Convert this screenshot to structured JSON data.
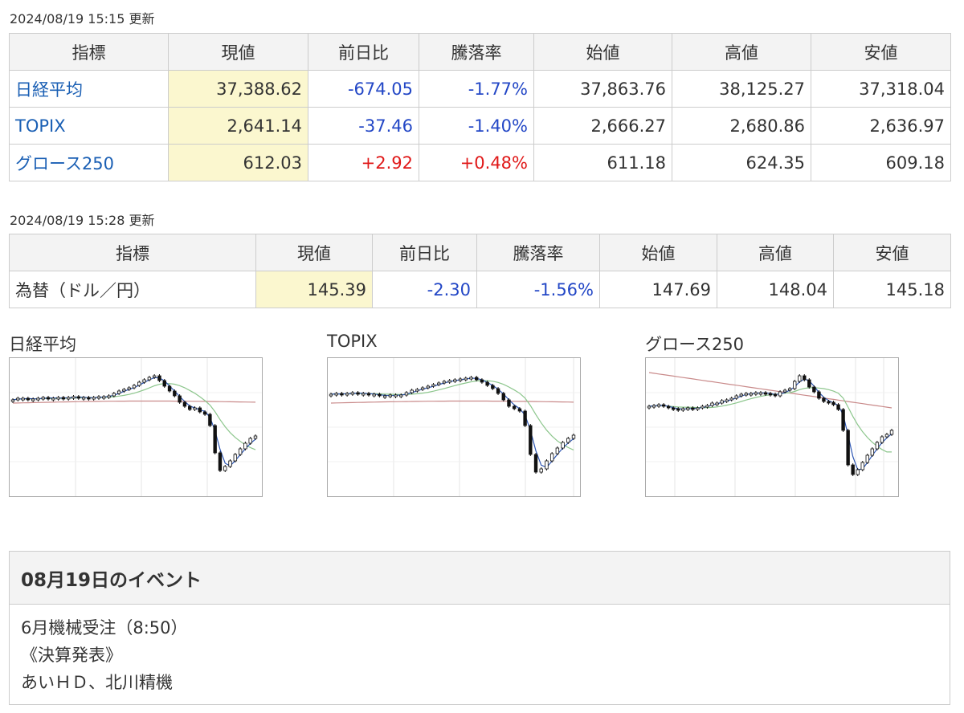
{
  "stocks": {
    "updated": "2024/08/19 15:15 更新",
    "headers": [
      "指標",
      "現値",
      "前日比",
      "騰落率",
      "始値",
      "高値",
      "安値"
    ],
    "rows": [
      {
        "name": "日経平均",
        "current": "37,388.62",
        "change": "-674.05",
        "rate": "-1.77%",
        "open": "37,863.76",
        "high": "38,125.27",
        "low": "37,318.04",
        "dir": "neg"
      },
      {
        "name": "TOPIX",
        "current": "2,641.14",
        "change": "-37.46",
        "rate": "-1.40%",
        "open": "2,666.27",
        "high": "2,680.86",
        "low": "2,636.97",
        "dir": "neg"
      },
      {
        "name": "グロース250",
        "current": "612.03",
        "change": "+2.92",
        "rate": "+0.48%",
        "open": "611.18",
        "high": "624.35",
        "low": "609.18",
        "dir": "pos"
      }
    ]
  },
  "fx": {
    "updated": "2024/08/19 15:28 更新",
    "headers": [
      "指標",
      "現値",
      "前日比",
      "騰落率",
      "始値",
      "高値",
      "安値"
    ],
    "rows": [
      {
        "name": "為替（ドル／円）",
        "current": "145.39",
        "change": "-2.30",
        "rate": "-1.56%",
        "open": "147.69",
        "high": "148.04",
        "low": "145.18",
        "dir": "neg"
      }
    ]
  },
  "charts": [
    {
      "title": "日経平均"
    },
    {
      "title": "TOPIX"
    },
    {
      "title": "グロース250"
    }
  ],
  "events": {
    "title": "08月19日のイベント",
    "lines": [
      "6月機械受注（8:50）",
      "《決算発表》",
      "あいＨＤ、北川精機"
    ]
  },
  "colors": {
    "negative": "#2347c6",
    "positive": "#e01818",
    "highlight": "#fbf7cf",
    "header_bg": "#f3f3f3",
    "link": "#1a5fb4"
  }
}
